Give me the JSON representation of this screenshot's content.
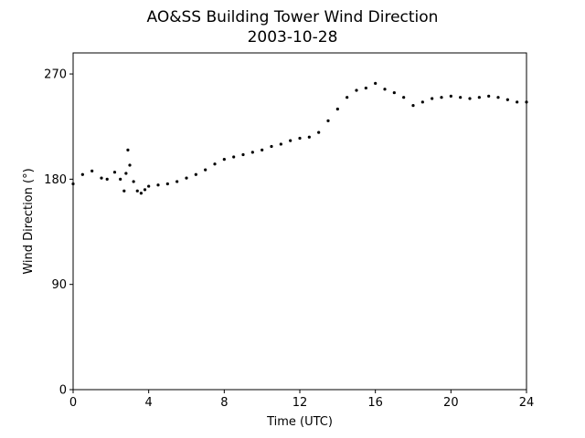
{
  "chart_data": {
    "type": "scatter",
    "title": "AO&SS Building Tower Wind Direction",
    "subtitle": "2003-10-28",
    "xlabel": "Time (UTC)",
    "ylabel": "Wind Direction (°)",
    "xlim": [
      0,
      24
    ],
    "ylim": [
      0,
      288
    ],
    "xticks": [
      0,
      4,
      8,
      12,
      16,
      20,
      24
    ],
    "yticks": [
      0,
      90,
      180,
      270
    ],
    "grid": false,
    "marker_color": "#000000",
    "series": [
      {
        "x": [
          0,
          0.5,
          1.0,
          1.5,
          1.8,
          2.2,
          2.5,
          2.7,
          2.8,
          2.9,
          3.0,
          3.2,
          3.4,
          3.6,
          3.8,
          4.0,
          4.5,
          5.0,
          5.5,
          6.0,
          6.5,
          7.0,
          7.5,
          8.0,
          8.5,
          9.0,
          9.5,
          10.0,
          10.5,
          11.0,
          11.5,
          12.0,
          12.5,
          13.0,
          13.5,
          14.0,
          14.5,
          15.0,
          15.5,
          16.0,
          16.5,
          17.0,
          17.5,
          18.0,
          18.5,
          19.0,
          19.5,
          20.0,
          20.5,
          21.0,
          21.5,
          22.0,
          22.5,
          23.0,
          23.5,
          24.0
        ],
        "y": [
          176,
          184,
          187,
          181,
          180,
          186,
          180,
          170,
          185,
          205,
          192,
          178,
          170,
          168,
          171,
          174,
          175,
          176,
          178,
          181,
          184,
          188,
          193,
          197,
          199,
          201,
          203,
          205,
          208,
          210,
          213,
          215,
          216,
          220,
          230,
          240,
          250,
          256,
          258,
          262,
          257,
          254,
          250,
          243,
          246,
          249,
          250,
          251,
          250,
          249,
          250,
          251,
          250,
          248,
          246,
          246
        ]
      }
    ]
  }
}
